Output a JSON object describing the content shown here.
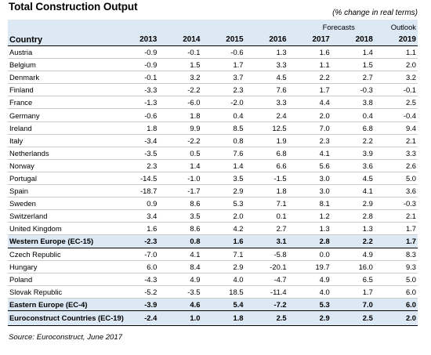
{
  "title": "Total Construction Output",
  "subtitle": "(% change in real terms)",
  "header": {
    "forecasts_label": "Forecasts",
    "outlook_label": "Outlook",
    "country_label": "Country",
    "years": [
      "2013",
      "2014",
      "2015",
      "2016",
      "2017",
      "2018",
      "2019"
    ]
  },
  "rows": [
    {
      "country": "Austria",
      "values": [
        "-0.9",
        "-0.1",
        "-0.6",
        "1.3",
        "1.6",
        "1.4",
        "1.1"
      ]
    },
    {
      "country": "Belgium",
      "values": [
        "-0.9",
        "1.5",
        "1.7",
        "3.3",
        "1.1",
        "1.5",
        "2.0"
      ]
    },
    {
      "country": "Denmark",
      "values": [
        "-0.1",
        "3.2",
        "3.7",
        "4.5",
        "2.2",
        "2.7",
        "3.2"
      ]
    },
    {
      "country": "Finland",
      "values": [
        "-3.3",
        "-2.2",
        "2.3",
        "7.6",
        "1.7",
        "-0.3",
        "-0.1"
      ]
    },
    {
      "country": "France",
      "values": [
        "-1.3",
        "-6.0",
        "-2.0",
        "3.3",
        "4.4",
        "3.8",
        "2.5"
      ]
    },
    {
      "country": "Germany",
      "values": [
        "-0.6",
        "1.8",
        "0.4",
        "2.4",
        "2.0",
        "0.4",
        "-0.4"
      ]
    },
    {
      "country": "Ireland",
      "values": [
        "1.8",
        "9.9",
        "8.5",
        "12.5",
        "7.0",
        "6.8",
        "9.4"
      ]
    },
    {
      "country": "Italy",
      "values": [
        "-3.4",
        "-2.2",
        "0.8",
        "1.9",
        "2.3",
        "2.2",
        "2.1"
      ]
    },
    {
      "country": "Netherlands",
      "values": [
        "-3.5",
        "0.5",
        "7.6",
        "6.8",
        "4.1",
        "3.9",
        "3.3"
      ]
    },
    {
      "country": "Norway",
      "values": [
        "2.3",
        "1.4",
        "1.4",
        "6.6",
        "5.6",
        "3.6",
        "2.6"
      ]
    },
    {
      "country": "Portugal",
      "values": [
        "-14.5",
        "-1.0",
        "3.5",
        "-1.5",
        "3.0",
        "4.5",
        "5.0"
      ]
    },
    {
      "country": "Spain",
      "values": [
        "-18.7",
        "-1.7",
        "2.9",
        "1.8",
        "3.0",
        "4.1",
        "3.6"
      ]
    },
    {
      "country": "Sweden",
      "values": [
        "0.9",
        "8.6",
        "5.3",
        "7.1",
        "8.1",
        "2.9",
        "-0.3"
      ]
    },
    {
      "country": "Switzerland",
      "values": [
        "3.4",
        "3.5",
        "2.0",
        "0.1",
        "1.2",
        "2.8",
        "2.1"
      ]
    },
    {
      "country": "United Kingdom",
      "values": [
        "1.6",
        "8.6",
        "4.2",
        "2.7",
        "1.3",
        "1.3",
        "1.7"
      ]
    }
  ],
  "subtotal_west": {
    "country": "Western Europe (EC-15)",
    "values": [
      "-2.3",
      "0.8",
      "1.6",
      "3.1",
      "2.8",
      "2.2",
      "1.7"
    ]
  },
  "rows_east": [
    {
      "country": "Czech Republic",
      "values": [
        "-7.0",
        "4.1",
        "7.1",
        "-5.8",
        "0.0",
        "4.9",
        "8.3"
      ]
    },
    {
      "country": "Hungary",
      "values": [
        "6.0",
        "8.4",
        "2.9",
        "-20.1",
        "19.7",
        "16.0",
        "9.3"
      ]
    },
    {
      "country": "Poland",
      "values": [
        "-4.3",
        "4.9",
        "4.0",
        "-4.7",
        "4.9",
        "6.5",
        "5.0"
      ]
    },
    {
      "country": "Slovak Republic",
      "values": [
        "-5.2",
        "-3.5",
        "18.5",
        "-11.4",
        "4.0",
        "1.7",
        "6.0"
      ]
    }
  ],
  "subtotal_east": {
    "country": "Eastern Europe (EC-4)",
    "values": [
      "-3.9",
      "4.6",
      "5.4",
      "-7.2",
      "5.3",
      "7.0",
      "6.0"
    ]
  },
  "total": {
    "country": "Euroconstruct Countries (EC-19)",
    "values": [
      "-2.4",
      "1.0",
      "1.8",
      "2.5",
      "2.9",
      "2.5",
      "2.0"
    ]
  },
  "source": "Source: Euroconstruct, June 2017",
  "colors": {
    "header_band": "#dce8f3",
    "row_rule": "#c9c9c9"
  }
}
